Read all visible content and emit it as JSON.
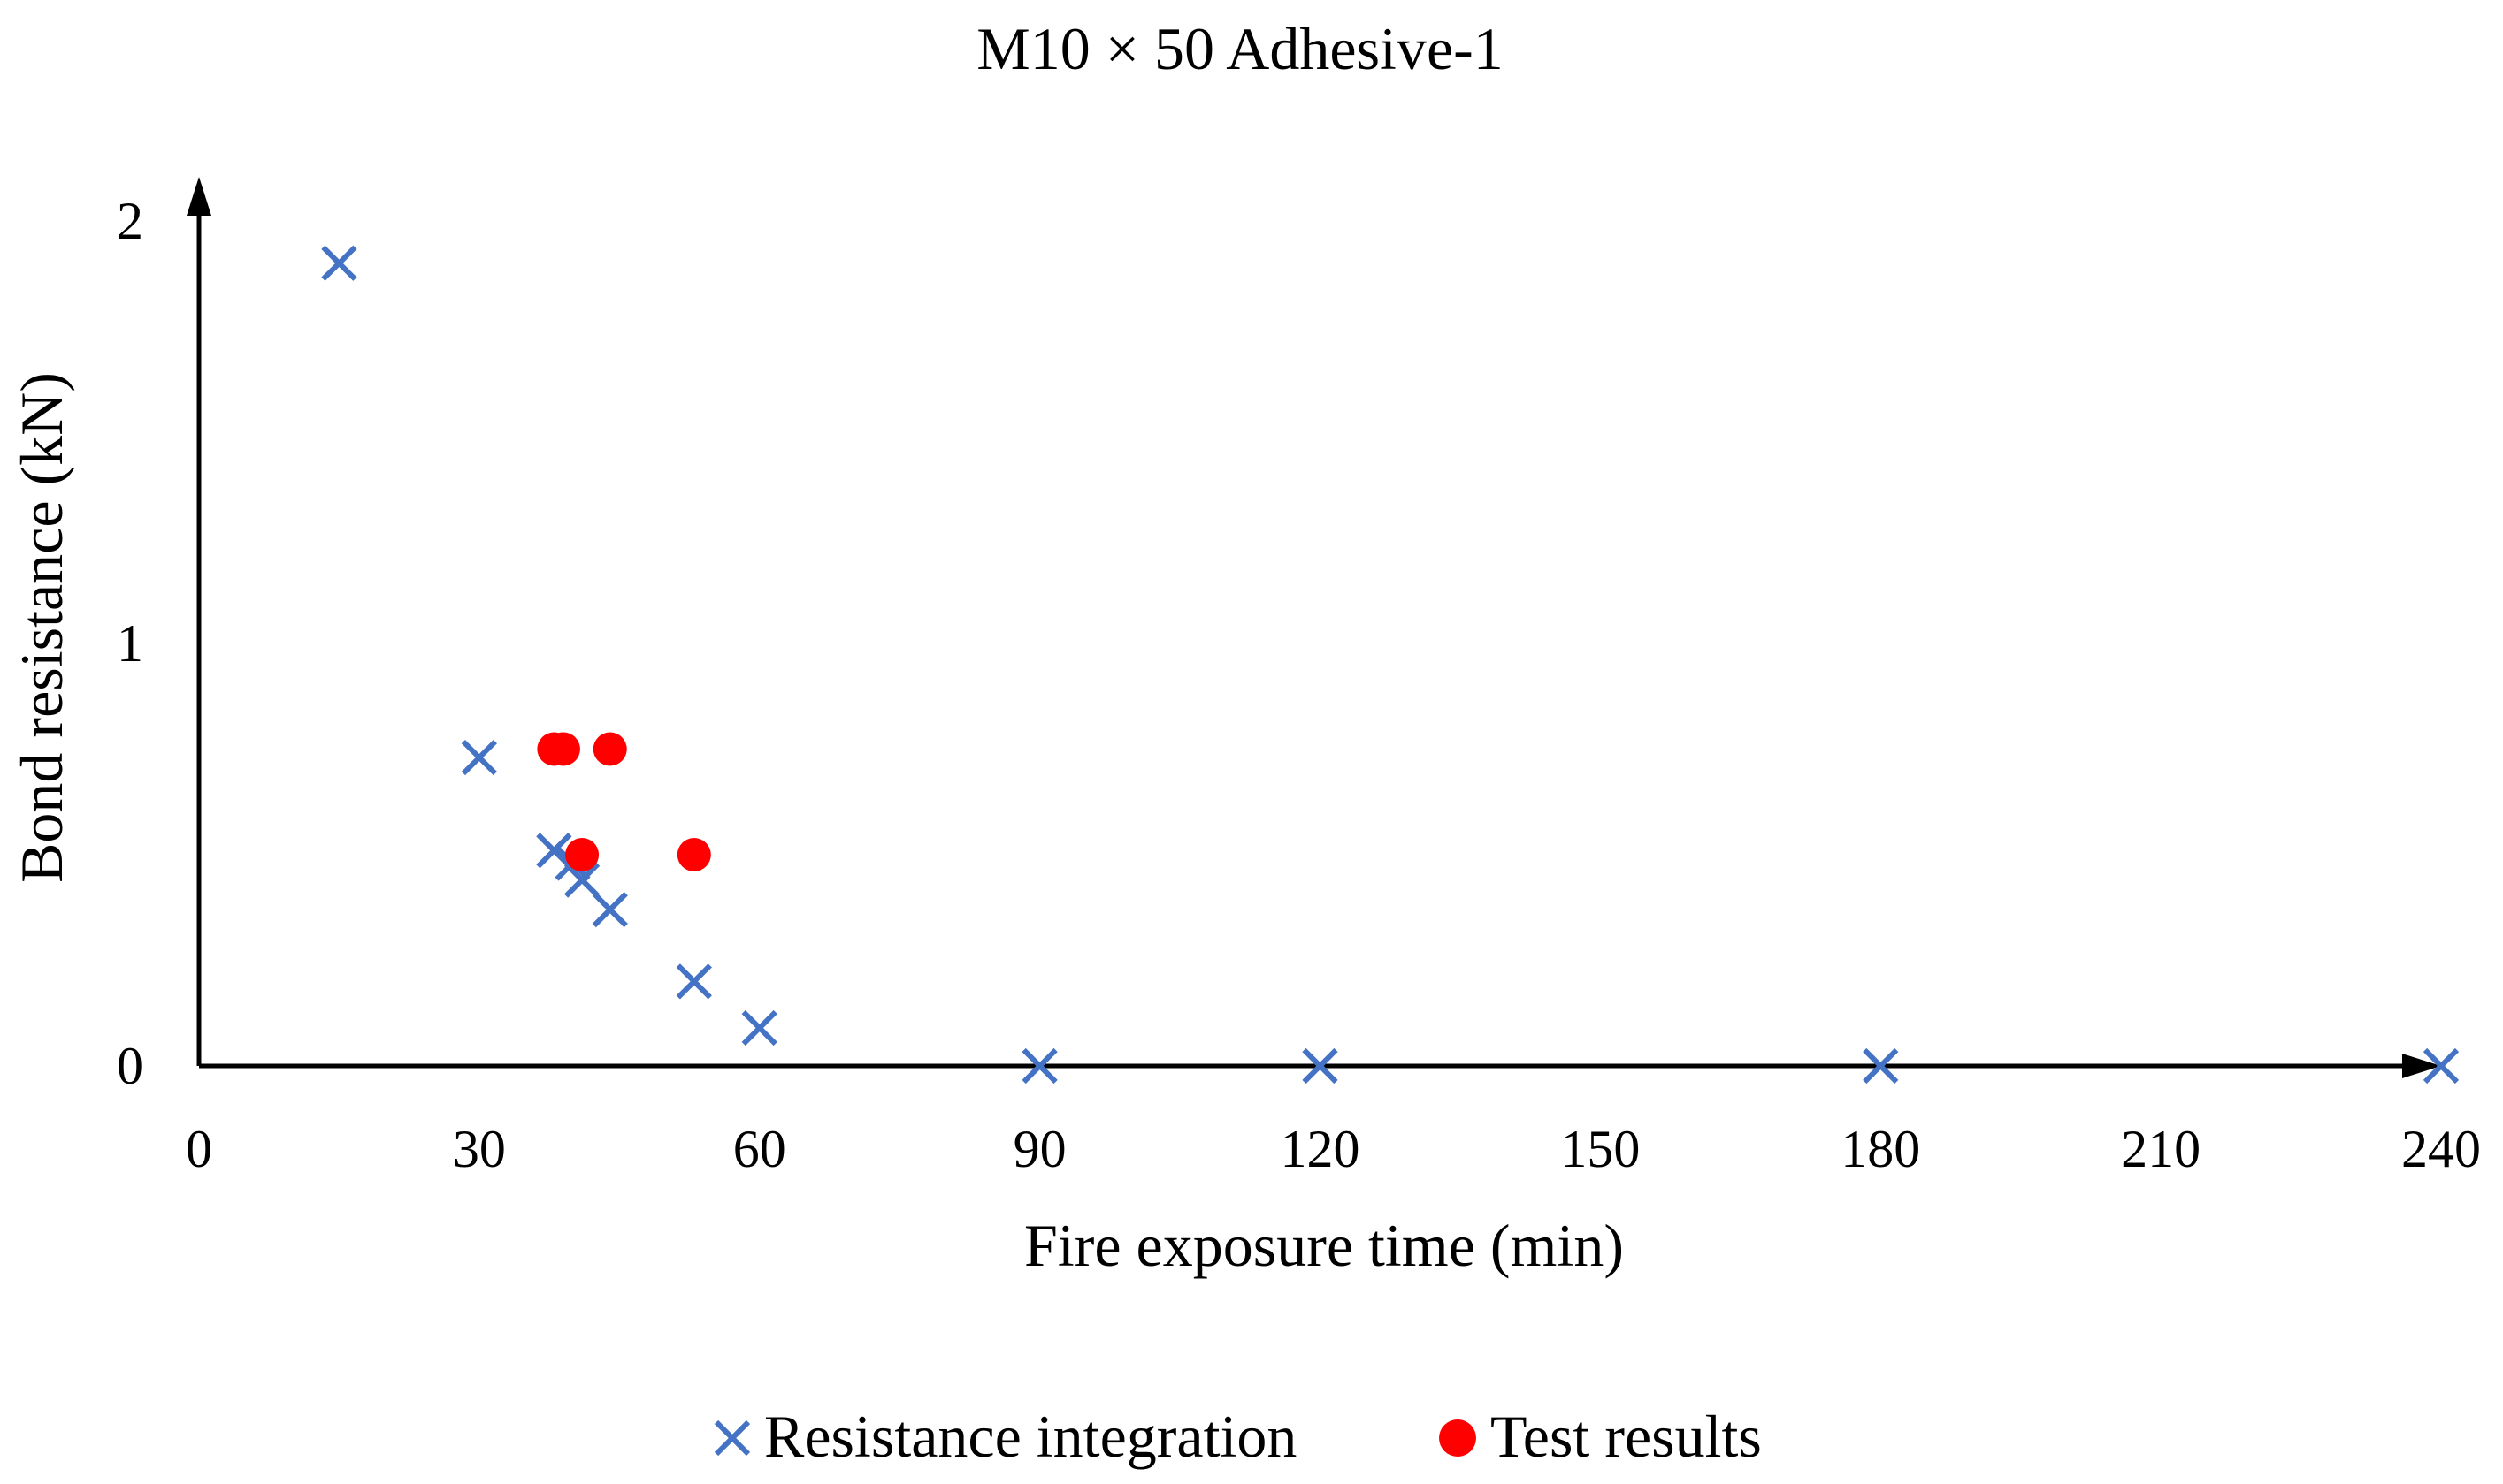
{
  "chart_data": {
    "type": "scatter",
    "title": "M10 × 50 Adhesive-1",
    "xlabel": "Fire exposure time (min)",
    "ylabel": "Bond resistance (kN)",
    "xlim": [
      0,
      240
    ],
    "ylim": [
      0,
      2
    ],
    "xticks": [
      "0",
      "30",
      "60",
      "90",
      "120",
      "150",
      "180",
      "210",
      "240"
    ],
    "yticks": [
      "0",
      "1",
      "2"
    ],
    "grid": false,
    "legend_position": "bottom-center",
    "series": [
      {
        "name": "Resistance integration",
        "marker": "x",
        "color": "#4472C4",
        "points": [
          {
            "x": 15,
            "y": 1.9
          },
          {
            "x": 30,
            "y": 0.73
          },
          {
            "x": 38,
            "y": 0.51
          },
          {
            "x": 40,
            "y": 0.48
          },
          {
            "x": 41,
            "y": 0.44
          },
          {
            "x": 44,
            "y": 0.37
          },
          {
            "x": 53,
            "y": 0.2
          },
          {
            "x": 60,
            "y": 0.09
          },
          {
            "x": 90,
            "y": 0
          },
          {
            "x": 120,
            "y": 0
          },
          {
            "x": 180,
            "y": 0
          },
          {
            "x": 240,
            "y": 0
          }
        ]
      },
      {
        "name": "Test results",
        "marker": "circle",
        "color": "#FF0000",
        "points": [
          {
            "x": 38,
            "y": 0.75
          },
          {
            "x": 39,
            "y": 0.75
          },
          {
            "x": 44,
            "y": 0.75
          },
          {
            "x": 41,
            "y": 0.5
          },
          {
            "x": 53,
            "y": 0.5
          }
        ]
      }
    ]
  }
}
